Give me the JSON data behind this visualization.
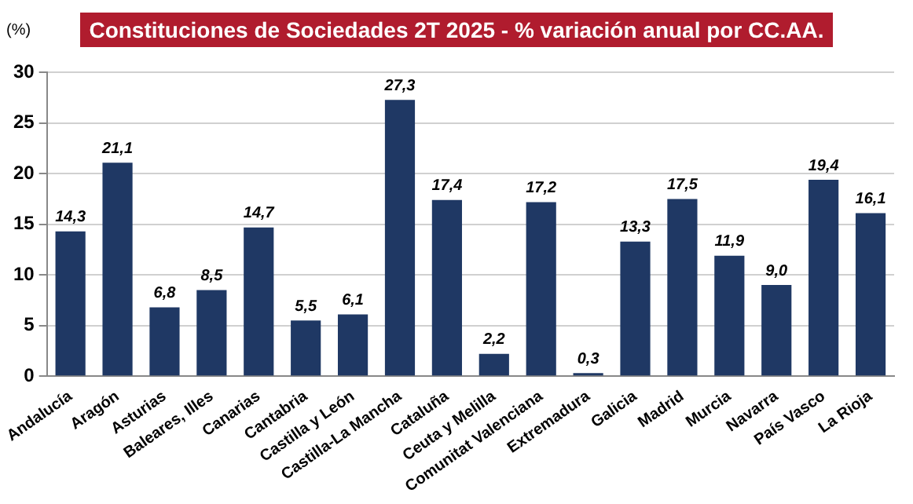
{
  "chart_data": {
    "type": "bar",
    "title": "Constituciones de Sociedades 2T 2025 - % variación anual por CC.AA.",
    "ylabel": "(%)",
    "categories": [
      "Andalucía",
      "Aragón",
      "Asturias",
      "Baleares, Illes",
      "Canarias",
      "Cantabria",
      "Castilla y León",
      "Castilla-La Mancha",
      "Cataluña",
      "Ceuta y Melilla",
      "Comunitat Valenciana",
      "Extremadura",
      "Galicia",
      "Madrid",
      "Murcia",
      "Navarra",
      "País Vasco",
      "La Rioja"
    ],
    "values": [
      14.3,
      21.1,
      6.8,
      8.5,
      14.7,
      5.5,
      6.1,
      27.3,
      17.4,
      2.2,
      17.2,
      0.3,
      13.3,
      17.5,
      11.9,
      9.0,
      19.4,
      16.1
    ],
    "value_labels": [
      "14,3",
      "21,1",
      "6,8",
      "8,5",
      "14,7",
      "5,5",
      "6,1",
      "27,3",
      "17,4",
      "2,2",
      "17,2",
      "0,3",
      "13,3",
      "17,5",
      "11,9",
      "9,0",
      "19,4",
      "16,1"
    ],
    "color": "#1f3864",
    "ylim": [
      0,
      30
    ],
    "yticks": [
      0,
      5,
      10,
      15,
      20,
      25,
      30
    ],
    "grid": "y",
    "legend": false
  }
}
